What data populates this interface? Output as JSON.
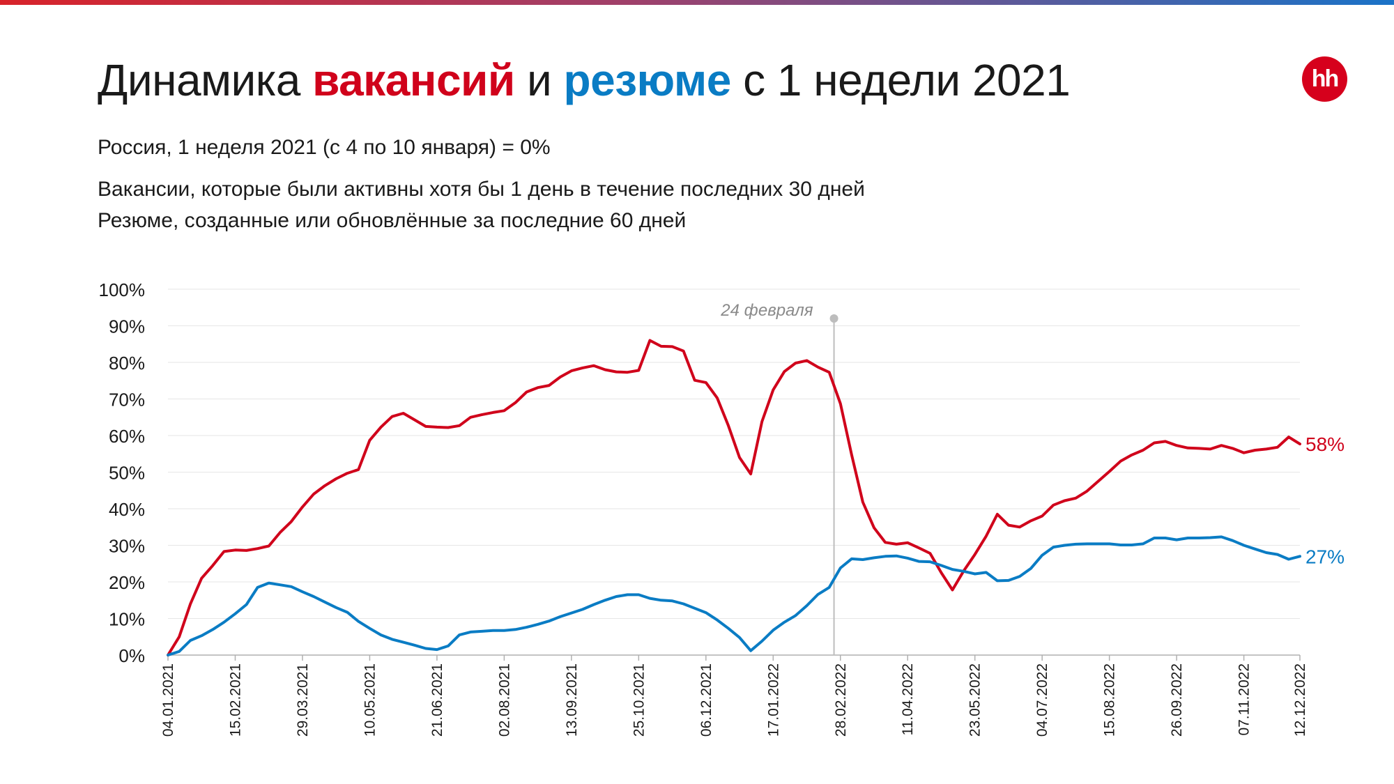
{
  "header": {
    "title_pre": "Динамика ",
    "title_vac": "вакансий",
    "title_mid": " и ",
    "title_res": "резюме",
    "title_post": " с 1 недели 2021",
    "logo_text": "hh"
  },
  "subtitles": {
    "line1": "Россия, 1 неделя 2021 (с 4 по 10 января) = 0%",
    "line2": "Вакансии, которые были активны хотя бы 1 день в течение последних 30 дней",
    "line3": "Резюме, созданные или обновлённые за последние 60 дней"
  },
  "colors": {
    "vacancies": "#d0021b",
    "resumes": "#0a7cc4",
    "grid": "#e6e6e6",
    "event": "#bdbdbd",
    "logo": "#d6001c"
  },
  "chart_data": {
    "type": "line",
    "title": "",
    "xlabel": "",
    "ylabel": "",
    "ylim": [
      0,
      100
    ],
    "y_ticks": [
      "0%",
      "10%",
      "20%",
      "30%",
      "40%",
      "50%",
      "60%",
      "70%",
      "80%",
      "90%",
      "100%"
    ],
    "x_ticks": [
      "04.01.2021",
      "15.02.2021",
      "29.03.2021",
      "10.05.2021",
      "21.06.2021",
      "02.08.2021",
      "13.09.2021",
      "25.10.2021",
      "06.12.2021",
      "17.01.2022",
      "28.02.2022",
      "11.04.2022",
      "23.05.2022",
      "04.07.2022",
      "15.08.2022",
      "26.09.2022",
      "07.11.2022",
      "12.12.2022"
    ],
    "grid": true,
    "annotation": {
      "label": "24 февраля",
      "date": "2022-02-24"
    },
    "series": [
      {
        "color_key": "vacancies",
        "end_label": "58%",
        "points": [
          [
            "2021-01-04",
            0
          ],
          [
            "2021-01-11",
            5
          ],
          [
            "2021-01-18",
            14
          ],
          [
            "2021-01-25",
            21
          ],
          [
            "2021-02-01",
            24.5
          ],
          [
            "2021-02-08",
            28.3
          ],
          [
            "2021-02-15",
            28.7
          ],
          [
            "2021-02-22",
            28.6
          ],
          [
            "2021-03-01",
            29.1
          ],
          [
            "2021-03-08",
            29.8
          ],
          [
            "2021-03-15",
            33.5
          ],
          [
            "2021-03-22",
            36.5
          ],
          [
            "2021-03-29",
            40.5
          ],
          [
            "2021-04-05",
            44
          ],
          [
            "2021-04-12",
            46.3
          ],
          [
            "2021-04-19",
            48.2
          ],
          [
            "2021-04-26",
            49.7
          ],
          [
            "2021-05-03",
            50.7
          ],
          [
            "2021-05-10",
            58.7
          ],
          [
            "2021-05-17",
            62.3
          ],
          [
            "2021-05-24",
            65.2
          ],
          [
            "2021-05-31",
            66.1
          ],
          [
            "2021-06-07",
            64.3
          ],
          [
            "2021-06-14",
            62.5
          ],
          [
            "2021-06-21",
            62.3
          ],
          [
            "2021-06-28",
            62.2
          ],
          [
            "2021-07-05",
            62.7
          ],
          [
            "2021-07-12",
            65
          ],
          [
            "2021-07-19",
            65.7
          ],
          [
            "2021-07-26",
            66.3
          ],
          [
            "2021-08-02",
            66.8
          ],
          [
            "2021-08-09",
            69
          ],
          [
            "2021-08-16",
            71.9
          ],
          [
            "2021-08-23",
            73.1
          ],
          [
            "2021-08-30",
            73.7
          ],
          [
            "2021-09-06",
            76
          ],
          [
            "2021-09-13",
            77.7
          ],
          [
            "2021-09-20",
            78.5
          ],
          [
            "2021-09-27",
            79.1
          ],
          [
            "2021-10-04",
            78
          ],
          [
            "2021-10-11",
            77.4
          ],
          [
            "2021-10-18",
            77.3
          ],
          [
            "2021-10-25",
            77.8
          ],
          [
            "2021-11-01",
            86
          ],
          [
            "2021-11-08",
            84.4
          ],
          [
            "2021-11-15",
            84.3
          ],
          [
            "2021-11-22",
            83.1
          ],
          [
            "2021-11-29",
            75.1
          ],
          [
            "2021-12-06",
            74.5
          ],
          [
            "2021-12-13",
            70.3
          ],
          [
            "2021-12-20",
            62.7
          ],
          [
            "2021-12-27",
            54
          ],
          [
            "2022-01-03",
            49.5
          ],
          [
            "2022-01-10",
            63.8
          ],
          [
            "2022-01-17",
            72.5
          ],
          [
            "2022-01-24",
            77.5
          ],
          [
            "2022-01-31",
            79.8
          ],
          [
            "2022-02-07",
            80.5
          ],
          [
            "2022-02-14",
            78.7
          ],
          [
            "2022-02-21",
            77.3
          ],
          [
            "2022-02-28",
            68.7
          ],
          [
            "2022-03-07",
            54.8
          ],
          [
            "2022-03-14",
            41.8
          ],
          [
            "2022-03-21",
            34.8
          ],
          [
            "2022-03-28",
            30.8
          ],
          [
            "2022-04-04",
            30.3
          ],
          [
            "2022-04-11",
            30.7
          ],
          [
            "2022-04-18",
            29.3
          ],
          [
            "2022-04-25",
            27.8
          ],
          [
            "2022-05-02",
            22.5
          ],
          [
            "2022-05-09",
            17.8
          ],
          [
            "2022-05-16",
            23
          ],
          [
            "2022-05-23",
            27.5
          ],
          [
            "2022-05-30",
            32.5
          ],
          [
            "2022-06-06",
            38.5
          ],
          [
            "2022-06-13",
            35.5
          ],
          [
            "2022-06-20",
            35
          ],
          [
            "2022-06-27",
            36.7
          ],
          [
            "2022-07-04",
            38
          ],
          [
            "2022-07-11",
            41
          ],
          [
            "2022-07-18",
            42.2
          ],
          [
            "2022-07-25",
            42.9
          ],
          [
            "2022-08-01",
            44.8
          ],
          [
            "2022-08-08",
            47.5
          ],
          [
            "2022-08-15",
            50.2
          ],
          [
            "2022-08-22",
            53
          ],
          [
            "2022-08-29",
            54.7
          ],
          [
            "2022-09-05",
            56
          ],
          [
            "2022-09-12",
            58
          ],
          [
            "2022-09-19",
            58.4
          ],
          [
            "2022-09-26",
            57.3
          ],
          [
            "2022-10-03",
            56.6
          ],
          [
            "2022-10-10",
            56.5
          ],
          [
            "2022-10-17",
            56.3
          ],
          [
            "2022-10-24",
            57.3
          ],
          [
            "2022-10-31",
            56.5
          ],
          [
            "2022-11-07",
            55.3
          ],
          [
            "2022-11-14",
            56
          ],
          [
            "2022-11-21",
            56.3
          ],
          [
            "2022-11-28",
            56.8
          ],
          [
            "2022-12-05",
            59.6
          ],
          [
            "2022-12-12",
            57.7
          ]
        ]
      },
      {
        "color_key": "resumes",
        "end_label": "27%",
        "points": [
          [
            "2021-01-04",
            0
          ],
          [
            "2021-01-11",
            1
          ],
          [
            "2021-01-18",
            4
          ],
          [
            "2021-01-25",
            5.3
          ],
          [
            "2021-02-01",
            7
          ],
          [
            "2021-02-08",
            9
          ],
          [
            "2021-02-15",
            11.3
          ],
          [
            "2021-02-22",
            13.8
          ],
          [
            "2021-03-01",
            18.5
          ],
          [
            "2021-03-08",
            19.7
          ],
          [
            "2021-03-15",
            19.2
          ],
          [
            "2021-03-22",
            18.7
          ],
          [
            "2021-03-29",
            17.3
          ],
          [
            "2021-04-05",
            16
          ],
          [
            "2021-04-12",
            14.5
          ],
          [
            "2021-04-19",
            13
          ],
          [
            "2021-04-26",
            11.7
          ],
          [
            "2021-05-03",
            9.2
          ],
          [
            "2021-05-10",
            7.3
          ],
          [
            "2021-05-17",
            5.5
          ],
          [
            "2021-05-24",
            4.3
          ],
          [
            "2021-05-31",
            3.5
          ],
          [
            "2021-06-07",
            2.7
          ],
          [
            "2021-06-14",
            1.8
          ],
          [
            "2021-06-21",
            1.5
          ],
          [
            "2021-06-28",
            2.5
          ],
          [
            "2021-07-05",
            5.5
          ],
          [
            "2021-07-12",
            6.3
          ],
          [
            "2021-07-19",
            6.5
          ],
          [
            "2021-07-26",
            6.7
          ],
          [
            "2021-08-02",
            6.7
          ],
          [
            "2021-08-09",
            7
          ],
          [
            "2021-08-16",
            7.6
          ],
          [
            "2021-08-23",
            8.4
          ],
          [
            "2021-08-30",
            9.3
          ],
          [
            "2021-09-06",
            10.5
          ],
          [
            "2021-09-13",
            11.5
          ],
          [
            "2021-09-20",
            12.5
          ],
          [
            "2021-09-27",
            13.8
          ],
          [
            "2021-10-04",
            15
          ],
          [
            "2021-10-11",
            16
          ],
          [
            "2021-10-18",
            16.5
          ],
          [
            "2021-10-25",
            16.5
          ],
          [
            "2021-11-01",
            15.5
          ],
          [
            "2021-11-08",
            15
          ],
          [
            "2021-11-15",
            14.8
          ],
          [
            "2021-11-22",
            14
          ],
          [
            "2021-11-29",
            12.8
          ],
          [
            "2021-12-06",
            11.6
          ],
          [
            "2021-12-13",
            9.6
          ],
          [
            "2021-12-20",
            7.3
          ],
          [
            "2021-12-27",
            4.8
          ],
          [
            "2022-01-03",
            1.2
          ],
          [
            "2022-01-10",
            3.8
          ],
          [
            "2022-01-17",
            6.8
          ],
          [
            "2022-01-24",
            9
          ],
          [
            "2022-01-31",
            10.8
          ],
          [
            "2022-02-07",
            13.5
          ],
          [
            "2022-02-14",
            16.6
          ],
          [
            "2022-02-21",
            18.5
          ],
          [
            "2022-02-28",
            23.8
          ],
          [
            "2022-03-07",
            26.3
          ],
          [
            "2022-03-14",
            26.1
          ],
          [
            "2022-03-21",
            26.6
          ],
          [
            "2022-03-28",
            27
          ],
          [
            "2022-04-04",
            27.1
          ],
          [
            "2022-04-11",
            26.5
          ],
          [
            "2022-04-18",
            25.6
          ],
          [
            "2022-04-25",
            25.5
          ],
          [
            "2022-05-02",
            24.5
          ],
          [
            "2022-05-09",
            23.4
          ],
          [
            "2022-05-16",
            22.9
          ],
          [
            "2022-05-23",
            22.2
          ],
          [
            "2022-05-30",
            22.6
          ],
          [
            "2022-06-06",
            20.3
          ],
          [
            "2022-06-13",
            20.4
          ],
          [
            "2022-06-20",
            21.5
          ],
          [
            "2022-06-27",
            23.7
          ],
          [
            "2022-07-04",
            27.3
          ],
          [
            "2022-07-11",
            29.5
          ],
          [
            "2022-07-18",
            30
          ],
          [
            "2022-07-25",
            30.3
          ],
          [
            "2022-08-01",
            30.4
          ],
          [
            "2022-08-08",
            30.4
          ],
          [
            "2022-08-15",
            30.4
          ],
          [
            "2022-08-22",
            30.1
          ],
          [
            "2022-08-29",
            30.1
          ],
          [
            "2022-09-05",
            30.4
          ],
          [
            "2022-09-12",
            32
          ],
          [
            "2022-09-19",
            32
          ],
          [
            "2022-09-26",
            31.5
          ],
          [
            "2022-10-03",
            32
          ],
          [
            "2022-10-10",
            32
          ],
          [
            "2022-10-17",
            32.1
          ],
          [
            "2022-10-24",
            32.3
          ],
          [
            "2022-10-31",
            31.3
          ],
          [
            "2022-11-07",
            30
          ],
          [
            "2022-11-14",
            29
          ],
          [
            "2022-11-21",
            28
          ],
          [
            "2022-11-28",
            27.5
          ],
          [
            "2022-12-05",
            26.2
          ],
          [
            "2022-12-12",
            27
          ]
        ]
      }
    ]
  }
}
